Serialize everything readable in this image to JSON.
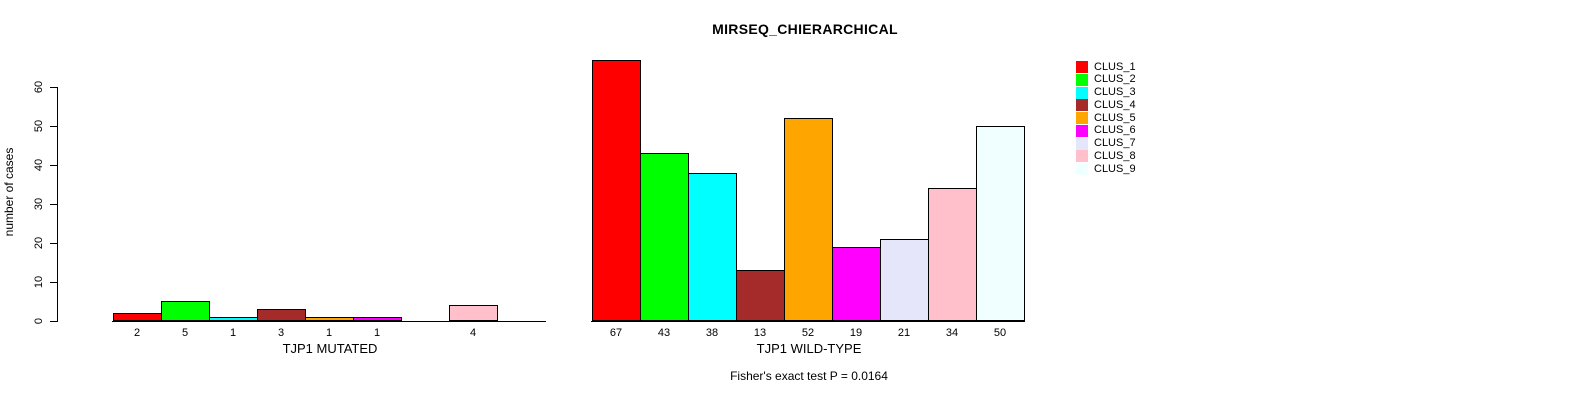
{
  "chart_data": {
    "type": "bar",
    "title": "MIRSEQ_CHIERARCHICAL",
    "ylabel": "number of cases",
    "ylim": [
      0,
      68
    ],
    "yticks": [
      0,
      10,
      20,
      30,
      40,
      50,
      60
    ],
    "grid": false,
    "legend_position": "right",
    "clusters": [
      {
        "name": "CLUS_1",
        "color": "#FF0000"
      },
      {
        "name": "CLUS_2",
        "color": "#00FF00"
      },
      {
        "name": "CLUS_3",
        "color": "#00FFFF"
      },
      {
        "name": "CLUS_4",
        "color": "#A52A2A"
      },
      {
        "name": "CLUS_5",
        "color": "#FFA500"
      },
      {
        "name": "CLUS_6",
        "color": "#FF00FF"
      },
      {
        "name": "CLUS_7",
        "color": "#E6E6FA"
      },
      {
        "name": "CLUS_8",
        "color": "#FFC0CB"
      },
      {
        "name": "CLUS_9",
        "color": "#F0FFFF"
      }
    ],
    "panels": [
      {
        "xlabel": "TJP1 MUTATED",
        "values": [
          2,
          5,
          1,
          3,
          1,
          1,
          0,
          4,
          0
        ]
      },
      {
        "xlabel": "TJP1 WILD-TYPE",
        "values": [
          67,
          43,
          38,
          13,
          52,
          19,
          21,
          34,
          50
        ]
      }
    ],
    "annotation": "Fisher's exact test P = 0.0164"
  }
}
